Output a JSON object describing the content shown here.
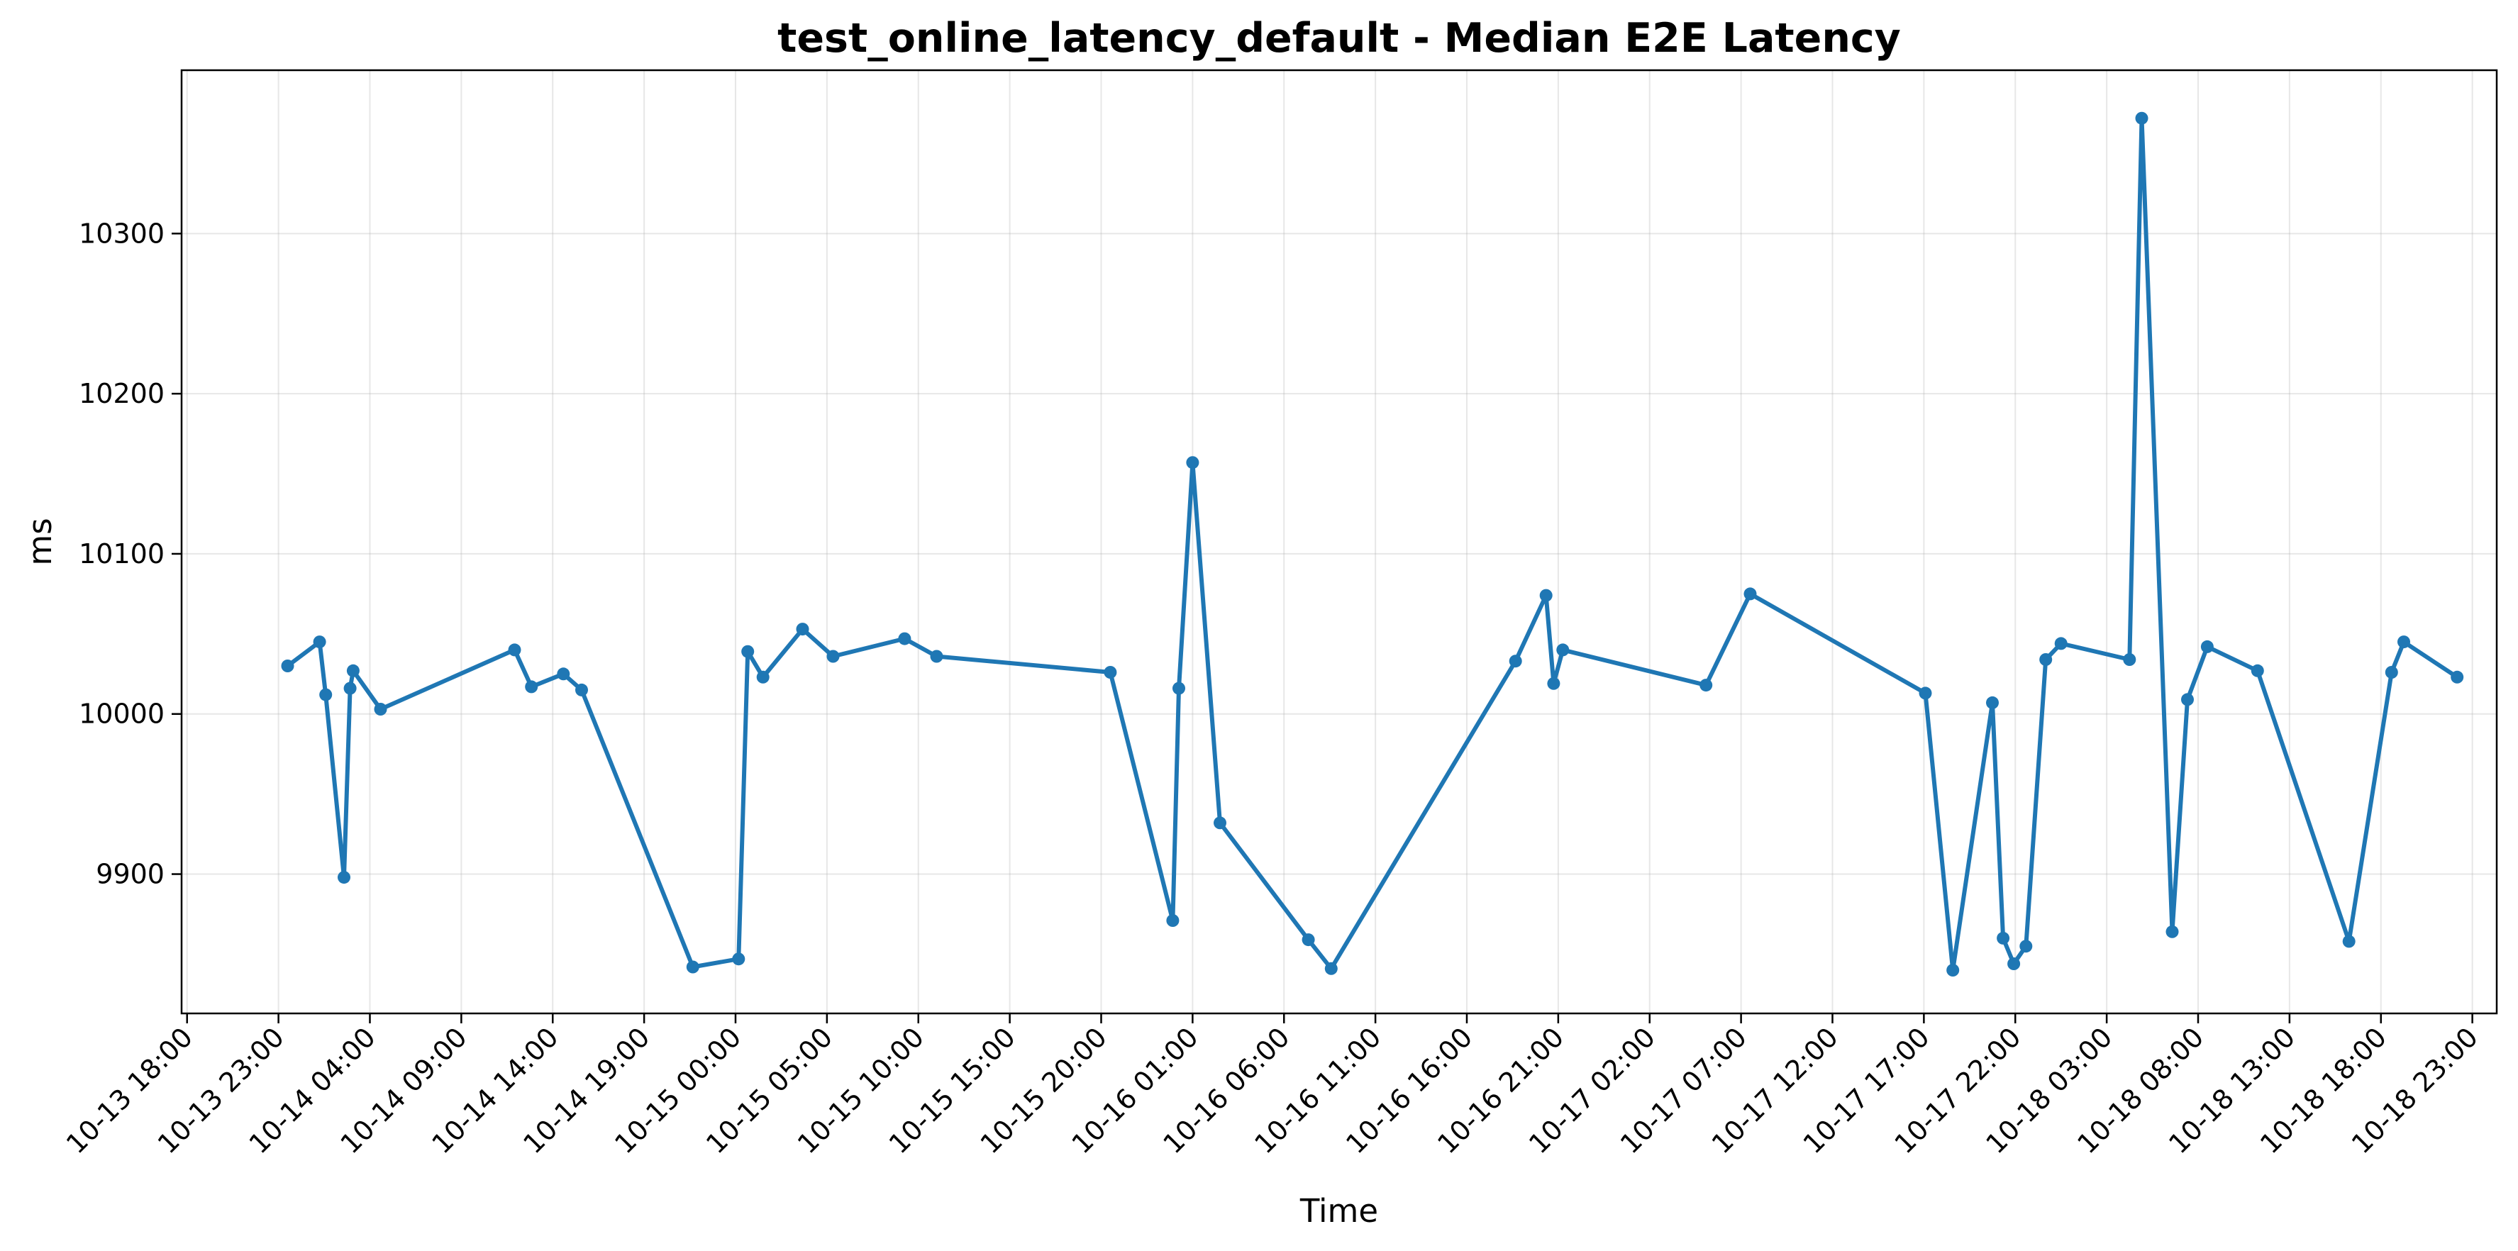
{
  "chart_data": {
    "type": "line",
    "title": "test_online_latency_default - Median E2E Latency",
    "xlabel": "Time",
    "ylabel": "ms",
    "x_tick_labels": [
      "10-13 18:00",
      "10-13 23:00",
      "10-14 04:00",
      "10-14 09:00",
      "10-14 14:00",
      "10-14 19:00",
      "10-15 00:00",
      "10-15 05:00",
      "10-15 10:00",
      "10-15 15:00",
      "10-15 20:00",
      "10-16 01:00",
      "10-16 06:00",
      "10-16 11:00",
      "10-16 16:00",
      "10-16 21:00",
      "10-17 02:00",
      "10-17 07:00",
      "10-17 12:00",
      "10-17 17:00",
      "10-17 22:00",
      "10-18 03:00",
      "10-18 08:00",
      "10-18 13:00",
      "10-18 18:00",
      "10-18 23:00"
    ],
    "y_ticks": [
      9900,
      10000,
      10100,
      10200,
      10300
    ],
    "xlim": [
      "2024-10-13 17:42",
      "2024-10-19 00:20"
    ],
    "ylim": [
      9813,
      10402
    ],
    "grid": true,
    "color": "#1f77b4",
    "series": [
      {
        "x": [
          "2024-10-13 23:30",
          "2024-10-14 01:15",
          "2024-10-14 01:35",
          "2024-10-14 02:35",
          "2024-10-14 02:55",
          "2024-10-14 03:05",
          "2024-10-14 04:35",
          "2024-10-14 11:55",
          "2024-10-14 12:50",
          "2024-10-14 14:35",
          "2024-10-14 15:35",
          "2024-10-14 21:40",
          "2024-10-14 24:10",
          "2024-10-15 00:40",
          "2024-10-15 01:30",
          "2024-10-15 03:40",
          "2024-10-15 05:20",
          "2024-10-15 09:15",
          "2024-10-15 11:00",
          "2024-10-15 20:30",
          "2024-10-15 23:55",
          "2024-10-16 00:15",
          "2024-10-16 01:00",
          "2024-10-16 02:30",
          "2024-10-16 07:20",
          "2024-10-16 08:35",
          "2024-10-16 18:40",
          "2024-10-16 20:20",
          "2024-10-16 20:45",
          "2024-10-16 21:15",
          "2024-10-17 05:05",
          "2024-10-17 07:30",
          "2024-10-17 17:05",
          "2024-10-17 18:35",
          "2024-10-17 20:45",
          "2024-10-17 21:20",
          "2024-10-17 21:55",
          "2024-10-17 22:35",
          "2024-10-17 23:40",
          "2024-10-18 00:30",
          "2024-10-18 04:15",
          "2024-10-18 04:55",
          "2024-10-18 06:35",
          "2024-10-18 07:25",
          "2024-10-18 08:30",
          "2024-10-18 11:15",
          "2024-10-18 16:15",
          "2024-10-18 18:35",
          "2024-10-18 19:15",
          "2024-10-18 22:10"
        ],
        "y": [
          10030,
          10045,
          10012,
          9898,
          10016,
          10027,
          10003,
          10040,
          10017,
          10025,
          10015,
          9842,
          9847,
          10039,
          10023,
          10053,
          10036,
          10047,
          10036,
          10026,
          9871,
          10016,
          10157,
          9932,
          9859,
          9841,
          10033,
          10074,
          10019,
          10040,
          10018,
          10075,
          10013,
          9840,
          10007,
          9860,
          9844,
          9855,
          10034,
          10044,
          10034,
          10372,
          9864,
          10009,
          10042,
          10027,
          9858,
          10026,
          10045,
          10023
        ]
      }
    ]
  }
}
